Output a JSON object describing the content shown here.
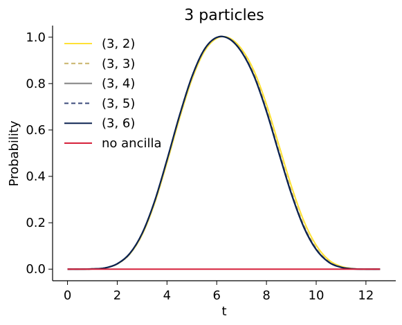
{
  "chart_data": {
    "type": "line",
    "title": "3 particles",
    "xlabel": "t",
    "ylabel": "Probability",
    "xlim": [
      -0.6,
      13.2
    ],
    "ylim": [
      -0.05,
      1.05
    ],
    "x_ticks": [
      0,
      2,
      4,
      6,
      8,
      10,
      12
    ],
    "y_ticks": [
      0.0,
      0.2,
      0.4,
      0.6,
      0.8,
      1.0
    ],
    "x_tick_labels": [
      "0",
      "2",
      "4",
      "6",
      "8",
      "10",
      "12"
    ],
    "y_tick_labels": [
      "0.0",
      "0.2",
      "0.4",
      "0.6",
      "0.8",
      "1.0"
    ],
    "grid": false,
    "legend_position": "top-left",
    "x": [
      0.0,
      0.5,
      1.0,
      1.5,
      2.0,
      2.5,
      3.0,
      3.5,
      4.0,
      4.5,
      5.0,
      5.5,
      6.0,
      6.5,
      7.0,
      7.5,
      8.0,
      8.5,
      9.0,
      9.5,
      10.0,
      10.5,
      11.0,
      11.5,
      12.0,
      12.566
    ],
    "series": [
      {
        "name": "(3, 2)",
        "color": "#ffe135",
        "dash": "solid",
        "values": [
          0.0,
          0.0,
          0.001,
          0.005,
          0.022,
          0.064,
          0.148,
          0.283,
          0.459,
          0.648,
          0.817,
          0.938,
          0.995,
          0.997,
          0.949,
          0.855,
          0.711,
          0.535,
          0.359,
          0.209,
          0.103,
          0.04,
          0.012,
          0.002,
          0.0,
          0.0
        ]
      },
      {
        "name": "(3, 3)",
        "color": "#c8b46a",
        "dash": "dashed",
        "values": [
          0.0,
          0.0,
          0.001,
          0.005,
          0.023,
          0.066,
          0.152,
          0.289,
          0.467,
          0.657,
          0.825,
          0.944,
          0.998,
          0.994,
          0.94,
          0.84,
          0.69,
          0.511,
          0.336,
          0.19,
          0.09,
          0.033,
          0.009,
          0.002,
          0.0,
          0.0
        ]
      },
      {
        "name": "(3, 4)",
        "color": "#808080",
        "dash": "solid",
        "values": [
          0.0,
          0.0,
          0.001,
          0.005,
          0.023,
          0.066,
          0.153,
          0.291,
          0.47,
          0.66,
          0.828,
          0.946,
          0.999,
          0.993,
          0.937,
          0.835,
          0.683,
          0.503,
          0.328,
          0.184,
          0.086,
          0.031,
          0.008,
          0.001,
          0.0,
          0.0
        ]
      },
      {
        "name": "(3, 5)",
        "color": "#3a4a7a",
        "dash": "dashed",
        "values": [
          0.0,
          0.0,
          0.001,
          0.005,
          0.023,
          0.067,
          0.154,
          0.292,
          0.471,
          0.661,
          0.829,
          0.947,
          0.999,
          0.993,
          0.936,
          0.833,
          0.681,
          0.501,
          0.326,
          0.182,
          0.085,
          0.031,
          0.008,
          0.001,
          0.0,
          0.0
        ]
      },
      {
        "name": "(3, 6)",
        "color": "#0b2250",
        "dash": "solid",
        "values": [
          0.0,
          0.0,
          0.001,
          0.005,
          0.023,
          0.067,
          0.154,
          0.292,
          0.471,
          0.661,
          0.829,
          0.947,
          0.999,
          0.993,
          0.936,
          0.832,
          0.68,
          0.5,
          0.325,
          0.181,
          0.084,
          0.03,
          0.008,
          0.001,
          0.0,
          0.0
        ]
      },
      {
        "name": "no ancilla",
        "color": "#d6203a",
        "dash": "solid",
        "values": [
          0.0,
          0.0,
          0.0,
          0.0,
          0.0,
          0.0,
          0.0,
          0.0,
          0.0,
          0.0,
          0.0,
          0.0,
          0.0,
          0.0,
          0.0,
          0.0,
          0.0,
          0.0,
          0.0,
          0.0,
          0.0,
          0.0,
          0.0,
          0.0,
          0.0,
          0.0
        ]
      }
    ]
  }
}
